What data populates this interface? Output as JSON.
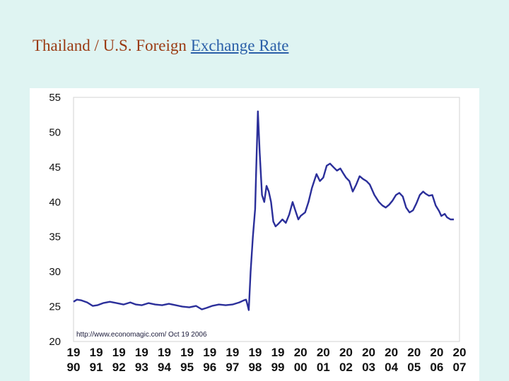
{
  "slide": {
    "title_text": "Thailand / U.S. Foreign",
    "title_link": "Exchange Rate"
  },
  "chart_data": {
    "type": "line",
    "title": "",
    "xlabel": "",
    "ylabel": "",
    "ylim": [
      20,
      55
    ],
    "xlim": [
      1990,
      2007
    ],
    "y_ticks": [
      "55",
      "50",
      "45",
      "40",
      "35",
      "30",
      "25",
      "20"
    ],
    "x_ticks": [
      {
        "top": "19",
        "bottom": "90"
      },
      {
        "top": "19",
        "bottom": "91"
      },
      {
        "top": "19",
        "bottom": "92"
      },
      {
        "top": "19",
        "bottom": "93"
      },
      {
        "top": "19",
        "bottom": "94"
      },
      {
        "top": "19",
        "bottom": "95"
      },
      {
        "top": "19",
        "bottom": "96"
      },
      {
        "top": "19",
        "bottom": "97"
      },
      {
        "top": "19",
        "bottom": "98"
      },
      {
        "top": "19",
        "bottom": "99"
      },
      {
        "top": "20",
        "bottom": "00"
      },
      {
        "top": "20",
        "bottom": "01"
      },
      {
        "top": "20",
        "bottom": "02"
      },
      {
        "top": "20",
        "bottom": "03"
      },
      {
        "top": "20",
        "bottom": "04"
      },
      {
        "top": "20",
        "bottom": "05"
      },
      {
        "top": "20",
        "bottom": "06"
      },
      {
        "top": "20",
        "bottom": "07"
      }
    ],
    "annotation": "http://www.economagic.com/   Oct 19 2006",
    "grid": false,
    "series_color": "#2b2f9a",
    "series": [
      {
        "name": "",
        "x": [
          1990.0,
          1990.15,
          1990.35,
          1990.6,
          1990.85,
          1991.05,
          1991.3,
          1991.6,
          1991.9,
          1992.2,
          1992.5,
          1992.75,
          1993.0,
          1993.3,
          1993.6,
          1993.9,
          1994.2,
          1994.5,
          1994.8,
          1995.1,
          1995.4,
          1995.65,
          1995.85,
          1996.1,
          1996.4,
          1996.7,
          1997.0,
          1997.3,
          1997.5,
          1997.6,
          1997.65,
          1997.72,
          1997.8,
          1997.9,
          1998.0,
          1998.05,
          1998.12,
          1998.2,
          1998.3,
          1998.4,
          1998.5,
          1998.6,
          1998.7,
          1998.8,
          1998.9,
          1999.0,
          1999.2,
          1999.35,
          1999.5,
          1999.65,
          1999.75,
          1999.9,
          2000.0,
          2000.2,
          2000.35,
          2000.5,
          2000.7,
          2000.85,
          2001.0,
          2001.15,
          2001.3,
          2001.45,
          2001.6,
          2001.75,
          2001.9,
          2002.0,
          2002.15,
          2002.3,
          2002.45,
          2002.6,
          2002.75,
          2002.9,
          2003.05,
          2003.25,
          2003.45,
          2003.6,
          2003.75,
          2003.9,
          2004.05,
          2004.2,
          2004.35,
          2004.5,
          2004.65,
          2004.8,
          2004.95,
          2005.1,
          2005.25,
          2005.4,
          2005.5,
          2005.65,
          2005.8,
          2005.95,
          2006.1,
          2006.2,
          2006.35,
          2006.45,
          2006.6,
          2006.75
        ],
        "values": [
          25.7,
          26.0,
          25.9,
          25.6,
          25.1,
          25.2,
          25.5,
          25.7,
          25.5,
          25.3,
          25.6,
          25.3,
          25.2,
          25.5,
          25.3,
          25.2,
          25.4,
          25.2,
          25.0,
          24.9,
          25.1,
          24.6,
          24.8,
          25.1,
          25.3,
          25.2,
          25.3,
          25.6,
          25.9,
          26.0,
          25.4,
          24.5,
          30.0,
          35.0,
          39.0,
          45.0,
          53.0,
          47.0,
          41.0,
          40.0,
          42.3,
          41.5,
          40.0,
          37.2,
          36.5,
          36.8,
          37.5,
          37.0,
          38.2,
          40.0,
          39.0,
          37.5,
          38.0,
          38.5,
          40.0,
          42.0,
          44.0,
          43.0,
          43.5,
          45.2,
          45.5,
          45.0,
          44.5,
          44.8,
          44.0,
          43.5,
          43.0,
          41.5,
          42.5,
          43.7,
          43.3,
          43.0,
          42.5,
          41.0,
          40.0,
          39.5,
          39.2,
          39.6,
          40.2,
          41.0,
          41.3,
          40.8,
          39.2,
          38.5,
          38.8,
          39.8,
          41.0,
          41.5,
          41.2,
          40.9,
          41.0,
          39.5,
          38.7,
          38.0,
          38.3,
          37.8,
          37.5,
          37.5
        ]
      }
    ]
  }
}
